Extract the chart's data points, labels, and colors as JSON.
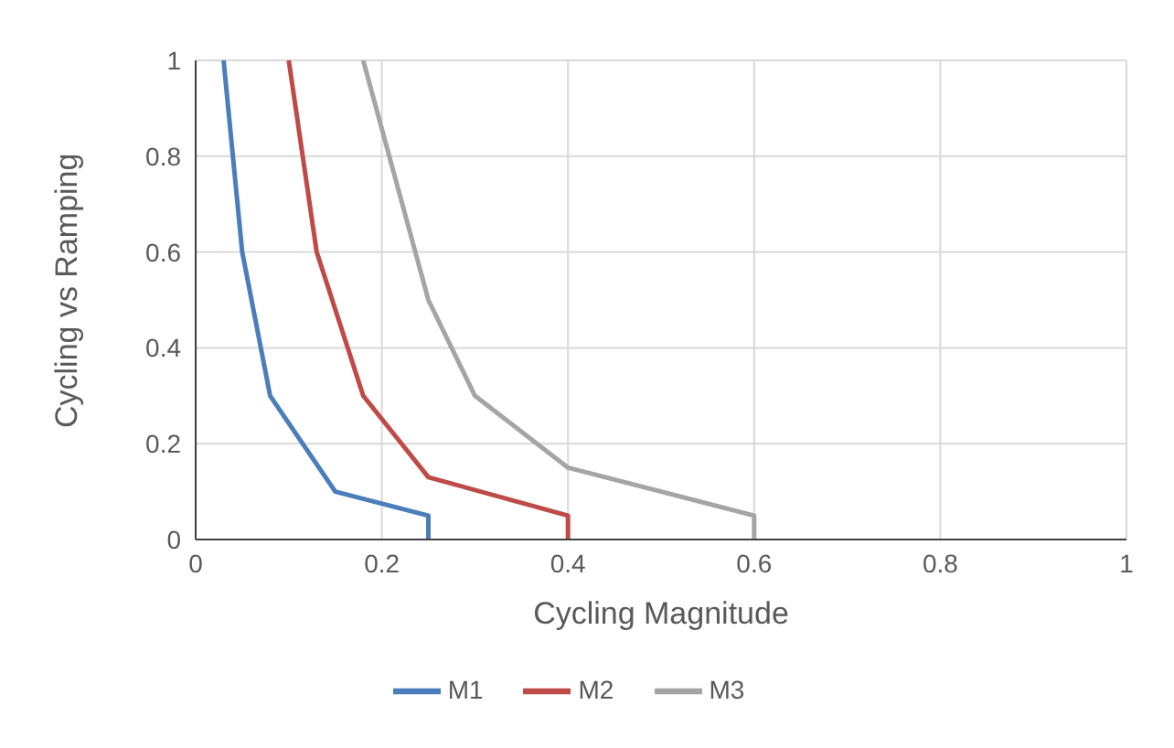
{
  "chart_data": {
    "type": "line",
    "xlabel": "Cycling Magnitude",
    "ylabel": "Cycling vs Ramping",
    "xlim": [
      0,
      1
    ],
    "xticks": [
      0,
      0.2,
      0.4,
      0.6,
      0.8,
      1
    ],
    "ylim": [
      0,
      1
    ],
    "yticks": [
      0,
      0.2,
      0.4,
      0.6,
      0.8,
      1
    ],
    "grid": true,
    "legend": "bottom",
    "marker": "none",
    "line_style": "solid",
    "series": [
      {
        "name": "M1",
        "color": "#4a7ebb",
        "x": [
          0.03,
          0.05,
          0.08,
          0.15,
          0.25,
          0.25
        ],
        "values": [
          1,
          0.6,
          0.3,
          0.1,
          0.05,
          0
        ]
      },
      {
        "name": "M2",
        "color": "#be4b48",
        "x": [
          0.1,
          0.13,
          0.18,
          0.25,
          0.4,
          0.4
        ],
        "values": [
          1,
          0.6,
          0.3,
          0.13,
          0.05,
          0
        ]
      },
      {
        "name": "M3",
        "color": "#a5a5a5",
        "x": [
          0.18,
          0.25,
          0.3,
          0.4,
          0.6,
          0.6
        ],
        "values": [
          1,
          0.5,
          0.3,
          0.15,
          0.05,
          0
        ]
      }
    ]
  }
}
